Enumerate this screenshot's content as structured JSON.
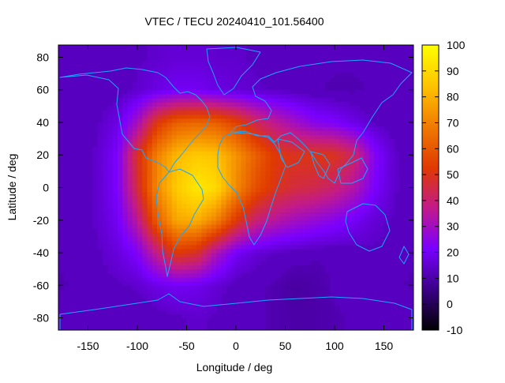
{
  "chart_data": {
    "type": "heatmap",
    "title": "VTEC / TECU 20240410_101.56400",
    "xlabel": "Longitude / deg",
    "ylabel": "Latitude / deg",
    "xlim": [
      -180,
      180
    ],
    "ylim": [
      -87.5,
      87.5
    ],
    "xticks": [
      -150,
      -100,
      -50,
      0,
      50,
      100,
      150
    ],
    "yticks": [
      -80,
      -60,
      -40,
      -20,
      0,
      20,
      40,
      60,
      80
    ],
    "colorbar": {
      "range": [
        -10,
        100
      ],
      "ticks": [
        -10,
        0,
        10,
        20,
        30,
        40,
        50,
        60,
        70,
        80,
        90,
        100
      ],
      "palette": [
        "#000000",
        "#3b0087",
        "#7a00ff",
        "#c21a8a",
        "#e03a00",
        "#f07b00",
        "#ffc400",
        "#ffff00"
      ]
    },
    "background_level": 13,
    "field_grid": {
      "lon_step": 20,
      "lat_step": 20,
      "lons": [
        -180,
        -160,
        -140,
        -120,
        -100,
        -80,
        -60,
        -40,
        -20,
        0,
        20,
        40,
        60,
        80,
        100,
        120,
        140,
        160,
        180
      ],
      "lats": [
        -80,
        -60,
        -40,
        -20,
        0,
        20,
        40,
        60,
        80
      ],
      "rows": [
        [
          14,
          13,
          12,
          12,
          12,
          13,
          14,
          15,
          14,
          13,
          12,
          11,
          10,
          10,
          11,
          12,
          13,
          13,
          14
        ],
        [
          11,
          12,
          13,
          14,
          15,
          18,
          20,
          19,
          16,
          13,
          12,
          11,
          9,
          10,
          12,
          13,
          13,
          12,
          11
        ],
        [
          12,
          13,
          14,
          17,
          22,
          38,
          52,
          48,
          32,
          20,
          16,
          14,
          13,
          12,
          12,
          13,
          14,
          13,
          12
        ],
        [
          12,
          13,
          15,
          20,
          35,
          62,
          78,
          80,
          70,
          52,
          40,
          34,
          30,
          27,
          24,
          20,
          16,
          14,
          12
        ],
        [
          12,
          13,
          15,
          22,
          45,
          72,
          86,
          94,
          90,
          72,
          58,
          50,
          46,
          44,
          40,
          33,
          22,
          15,
          12
        ],
        [
          12,
          13,
          15,
          22,
          48,
          70,
          82,
          86,
          84,
          74,
          62,
          52,
          50,
          51,
          50,
          42,
          24,
          15,
          12
        ],
        [
          12,
          13,
          14,
          18,
          30,
          52,
          62,
          64,
          62,
          55,
          44,
          36,
          30,
          24,
          22,
          18,
          14,
          13,
          12
        ],
        [
          13,
          12,
          12,
          13,
          15,
          18,
          20,
          20,
          18,
          16,
          15,
          14,
          13,
          12,
          11,
          11,
          12,
          13,
          13
        ],
        [
          12,
          12,
          13,
          13,
          14,
          15,
          16,
          16,
          15,
          15,
          14,
          13,
          12,
          12,
          12,
          12,
          12,
          12,
          12
        ]
      ]
    }
  }
}
